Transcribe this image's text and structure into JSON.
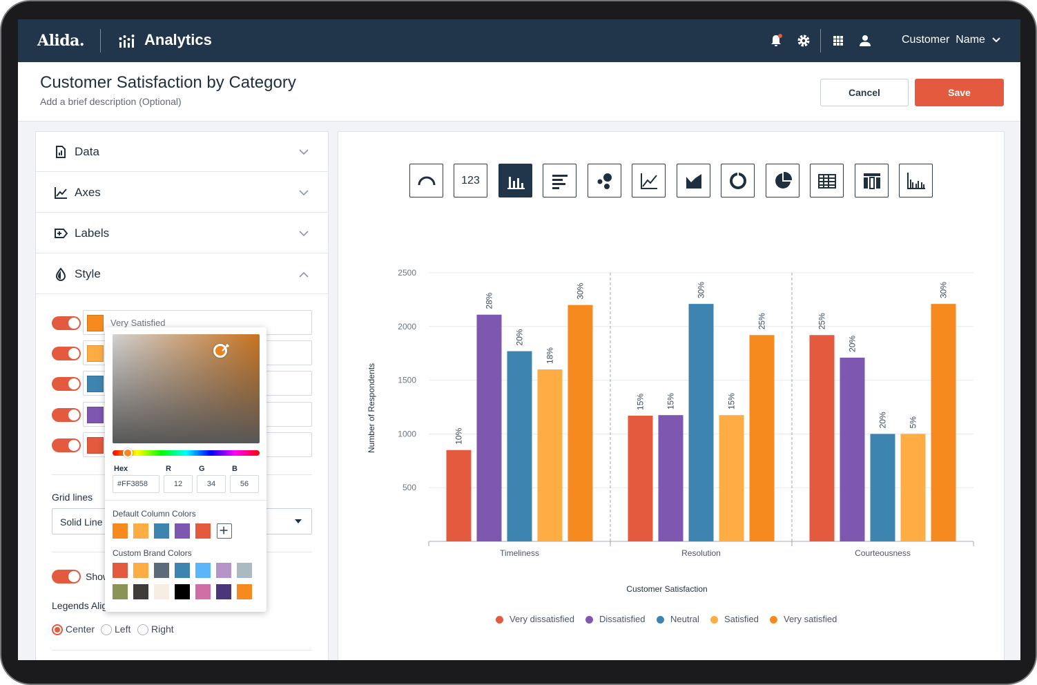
{
  "nav": {
    "brand": "Alida.",
    "app_title": "Analytics",
    "icons": [
      "bell-icon",
      "gear-icon",
      "grid-icon",
      "user-icon"
    ],
    "user_name": "Customer  Name"
  },
  "header": {
    "title": "Customer Satisfaction by Category",
    "description": "Add a brief description (Optional)",
    "cancel_label": "Cancel",
    "save_label": "Save"
  },
  "sidebar": {
    "sections": [
      {
        "label": "Data",
        "icon": "data-file-icon",
        "expanded": false
      },
      {
        "label": "Axes",
        "icon": "axes-icon",
        "expanded": false
      },
      {
        "label": "Labels",
        "icon": "labels-icon",
        "expanded": false
      },
      {
        "label": "Style",
        "icon": "style-drop-icon",
        "expanded": true
      }
    ],
    "series_colors": [
      {
        "color": "#F68A1F",
        "label": "Very Satisfied",
        "enabled": true
      },
      {
        "color": "#FDAD44",
        "label": "",
        "enabled": true
      },
      {
        "color": "#3D85B0",
        "label": "",
        "enabled": true
      },
      {
        "color": "#7D57B0",
        "label": "",
        "enabled": true
      },
      {
        "color": "#E35A3F",
        "label": "",
        "enabled": true
      }
    ],
    "grid_lines_label": "Grid lines",
    "grid_lines_value": "Solid Line",
    "show_label": "Show",
    "legends_align_label": "Legends Align",
    "align_options": [
      "Center",
      "Left",
      "Right"
    ],
    "align_selected": "Center"
  },
  "color_picker": {
    "hex_label": "Hex",
    "hex_value": "#FF3858",
    "r_label": "R",
    "r_value": "12",
    "g_label": "G",
    "g_value": "34",
    "b_label": "B",
    "b_value": "56",
    "default_title": "Default Column Colors",
    "default_colors": [
      "#F68A1F",
      "#FDAD44",
      "#3D85B0",
      "#7D57B0",
      "#E35A3F"
    ],
    "custom_title": "Custom Brand Colors",
    "custom_colors": [
      "#E35A3F",
      "#FDAD44",
      "#5B6B7A",
      "#3D85B0",
      "#5BB6F9",
      "#B694C9",
      "#AAB9C2",
      "#8A9456",
      "#3E3B39",
      "#F6EDE3",
      "#000000",
      "#D06FA5",
      "#4B367A",
      "#F68A1F"
    ]
  },
  "chart_types": [
    "gauge-chart-icon",
    "number-chart-icon",
    "column-chart-icon",
    "bar-chart-icon",
    "bubble-chart-icon",
    "line-chart-icon",
    "area-chart-icon",
    "donut-chart-icon",
    "pie-chart-icon",
    "table-chart-icon",
    "stacked-table-icon",
    "grouped-column-icon"
  ],
  "chart_type_number_text": "123",
  "chart_data": {
    "type": "bar",
    "title": "",
    "xlabel": "Customer Satisfaction",
    "ylabel": "Number of Respondents",
    "categories": [
      "Timeliness",
      "Resolution",
      "Courteousness"
    ],
    "yticks": [
      500,
      1000,
      1500,
      2000,
      2500
    ],
    "ylim": [
      0,
      2500
    ],
    "grid": true,
    "legend_position": "bottom",
    "series": [
      {
        "name": "Very dissatisfied",
        "color": "#E35A3F",
        "values": [
          850,
          1170,
          1920
        ],
        "labels": [
          "10%",
          "15%",
          "25%"
        ]
      },
      {
        "name": "Dissatisfied",
        "color": "#7D57B0",
        "values": [
          2110,
          1175,
          1710
        ],
        "labels": [
          "28%",
          "15%",
          "20%"
        ]
      },
      {
        "name": "Neutral",
        "color": "#3D85B0",
        "values": [
          1770,
          2210,
          1000
        ],
        "labels": [
          "20%",
          "30%",
          "20%"
        ]
      },
      {
        "name": "Satisfied",
        "color": "#FDAD44",
        "values": [
          1600,
          1175,
          1000
        ],
        "labels": [
          "18%",
          "15%",
          "5%"
        ]
      },
      {
        "name": "Very satisfied",
        "color": "#F68A1F",
        "values": [
          2200,
          1920,
          2210
        ],
        "labels": [
          "30%",
          "25%",
          "30%"
        ]
      }
    ]
  }
}
